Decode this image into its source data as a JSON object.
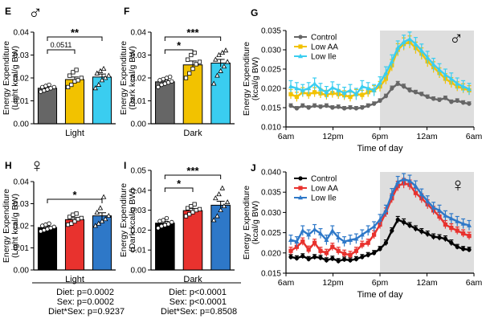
{
  "colors": {
    "control_male": "#666666",
    "low_aa_male": "#F2C200",
    "low_ile_male": "#3ACDF0",
    "control_female": "#000000",
    "low_aa_female": "#E8322E",
    "low_ile_female": "#2E78C8",
    "dark_shade": "#DEDEDE"
  },
  "stats": {
    "light": {
      "diet": "Diet: p=0.0002",
      "sex": "Sex: p=0.0002",
      "interaction": "Diet*Sex: p=0.9237"
    },
    "dark": {
      "diet": "Diet: p<0.0001",
      "sex": "Sex: p<0.0001",
      "interaction": "Diet*Sex: p=0.8508"
    }
  },
  "chart_data": [
    {
      "panel": "E",
      "type": "bar",
      "symbol": "♂",
      "categories": [
        "Control",
        "Low AA",
        "Low Ile"
      ],
      "xlabel": "Light",
      "ylabel": "Energy Expenditure (Light kcal/g BW)",
      "ylim": [
        0,
        0.04
      ],
      "yticks": [
        "0.00",
        "0.01",
        "0.02",
        "0.03",
        "0.04"
      ],
      "values": [
        0.0155,
        0.0193,
        0.0204
      ],
      "errors": [
        0.0006,
        0.0011,
        0.0013
      ],
      "points": [
        [
          0.014,
          0.0145,
          0.015,
          0.0155,
          0.016,
          0.016,
          0.0165,
          0.017
        ],
        [
          0.016,
          0.017,
          0.0185,
          0.019,
          0.02,
          0.021,
          0.0225,
          0.0235
        ],
        [
          0.0155,
          0.017,
          0.019,
          0.02,
          0.021,
          0.022,
          0.023,
          0.024
        ]
      ],
      "annotations": [
        {
          "from": 0,
          "to": 1,
          "label": "0.0511"
        },
        {
          "from": 0,
          "to": 2,
          "label": "**"
        }
      ]
    },
    {
      "panel": "F",
      "type": "bar",
      "categories": [
        "Control",
        "Low AA",
        "Low Ile"
      ],
      "xlabel": "Dark",
      "ylabel": "Energy Expenditure (Dark kcal/g BW)",
      "ylim": [
        0,
        0.04
      ],
      "yticks": [
        "0.00",
        "0.01",
        "0.02",
        "0.03",
        "0.04"
      ],
      "values": [
        0.0183,
        0.0257,
        0.0265
      ],
      "errors": [
        0.0008,
        0.0017,
        0.0016
      ],
      "points": [
        [
          0.016,
          0.017,
          0.0175,
          0.018,
          0.0185,
          0.019,
          0.0195,
          0.02,
          0.0205
        ],
        [
          0.02,
          0.022,
          0.024,
          0.026,
          0.027,
          0.028,
          0.03,
          0.031
        ],
        [
          0.0175,
          0.021,
          0.023,
          0.025,
          0.027,
          0.028,
          0.03,
          0.031,
          0.032
        ]
      ],
      "annotations": [
        {
          "from": 0,
          "to": 1,
          "label": "*"
        },
        {
          "from": 0,
          "to": 2,
          "label": "***"
        }
      ]
    },
    {
      "panel": "G",
      "type": "line",
      "symbol": "♂",
      "series": [
        {
          "name": "Control",
          "values": [
            0.0155,
            0.0148,
            0.0155,
            0.015,
            0.0155,
            0.0152,
            0.0155,
            0.015,
            0.0152,
            0.0148,
            0.015,
            0.0148,
            0.015,
            0.0155,
            0.016,
            0.0168,
            0.018,
            0.02,
            0.0212,
            0.0205,
            0.0195,
            0.019,
            0.0185,
            0.0178,
            0.0173,
            0.017,
            0.0175,
            0.0165,
            0.0168,
            0.0163,
            0.016
          ],
          "errors": [
            0.0005,
            0.0005,
            0.0005,
            0.0005,
            0.0005,
            0.0005,
            0.0005,
            0.0005,
            0.0005,
            0.0005,
            0.0005,
            0.0005,
            0.0005,
            0.0005,
            0.0005,
            0.0005,
            0.0005,
            0.0006,
            0.0006,
            0.0006,
            0.0006,
            0.0005,
            0.0005,
            0.0005,
            0.0005,
            0.0005,
            0.0005,
            0.0005,
            0.0005,
            0.0005,
            0.0005
          ]
        },
        {
          "name": "Low AA",
          "values": [
            0.0185,
            0.0178,
            0.019,
            0.0185,
            0.019,
            0.0187,
            0.0183,
            0.0188,
            0.0185,
            0.0182,
            0.0178,
            0.0185,
            0.0183,
            0.019,
            0.0195,
            0.0205,
            0.0225,
            0.026,
            0.03,
            0.0315,
            0.032,
            0.0305,
            0.029,
            0.027,
            0.0255,
            0.024,
            0.0225,
            0.0215,
            0.0205,
            0.02,
            0.0195
          ],
          "errors": [
            0.0012,
            0.0012,
            0.0012,
            0.0012,
            0.0012,
            0.0012,
            0.0012,
            0.0012,
            0.0012,
            0.0012,
            0.0012,
            0.0012,
            0.0012,
            0.0012,
            0.0012,
            0.0013,
            0.0014,
            0.0015,
            0.0016,
            0.0016,
            0.0016,
            0.0015,
            0.0015,
            0.0014,
            0.0014,
            0.0013,
            0.0013,
            0.0013,
            0.0012,
            0.0012,
            0.0012
          ]
        },
        {
          "name": "Low Ile",
          "values": [
            0.0205,
            0.02,
            0.0195,
            0.02,
            0.0212,
            0.0198,
            0.019,
            0.0202,
            0.0195,
            0.0188,
            0.0195,
            0.0185,
            0.0205,
            0.02,
            0.0195,
            0.0215,
            0.024,
            0.027,
            0.0305,
            0.032,
            0.0328,
            0.0315,
            0.0298,
            0.028,
            0.0262,
            0.0248,
            0.0235,
            0.0225,
            0.0212,
            0.0205,
            0.0198
          ],
          "errors": [
            0.0015,
            0.0015,
            0.0015,
            0.0015,
            0.0015,
            0.0015,
            0.0015,
            0.0015,
            0.0015,
            0.0015,
            0.0015,
            0.0015,
            0.0015,
            0.0015,
            0.0015,
            0.0015,
            0.0016,
            0.0017,
            0.0018,
            0.0018,
            0.0018,
            0.0017,
            0.0017,
            0.0016,
            0.0016,
            0.0016,
            0.0015,
            0.0015,
            0.0015,
            0.0015,
            0.0015
          ]
        }
      ],
      "ylabel": "Energy Expenditure (kcal/g BW)",
      "xlabel": "Time of day",
      "xticks": [
        "6am",
        "12pm",
        "6pm",
        "12am",
        "6am"
      ],
      "ylim": [
        0.01,
        0.035
      ],
      "yticks": [
        "0.010",
        "0.015",
        "0.020",
        "0.025",
        "0.030",
        "0.035"
      ],
      "shaded_dark_phase": [
        0.5,
        1.0
      ],
      "legend": "top-left"
    },
    {
      "panel": "H",
      "type": "bar",
      "symbol": "♀",
      "categories": [
        "Control",
        "Low AA",
        "Low Ile"
      ],
      "xlabel": "Light",
      "ylabel": "Energy Expenditure (Light kcal/g BW)",
      "ylim": [
        0,
        0.04
      ],
      "yticks": [
        "0.00",
        "0.01",
        "0.02",
        "0.03",
        "0.04"
      ],
      "values": [
        0.0192,
        0.0228,
        0.0245
      ],
      "errors": [
        0.0006,
        0.0009,
        0.0014
      ],
      "points": [
        [
          0.0175,
          0.018,
          0.0185,
          0.019,
          0.0195,
          0.02,
          0.0205,
          0.021
        ],
        [
          0.0205,
          0.021,
          0.022,
          0.023,
          0.0235,
          0.024,
          0.025,
          0.0255
        ],
        [
          0.02,
          0.021,
          0.022,
          0.023,
          0.0245,
          0.026,
          0.028,
          0.033
        ]
      ],
      "annotations": [
        {
          "from": 0,
          "to": 2,
          "label": "*"
        }
      ]
    },
    {
      "panel": "I",
      "type": "bar",
      "categories": [
        "Control",
        "Low AA",
        "Low Ile"
      ],
      "xlabel": "Dark",
      "ylabel": "Energy Expenditure (Dark kcal/g BW)",
      "ylim": [
        0,
        0.05
      ],
      "yticks": [
        "0.00",
        "0.01",
        "0.02",
        "0.03",
        "0.04",
        "0.05"
      ],
      "values": [
        0.0235,
        0.0298,
        0.0325
      ],
      "errors": [
        0.0009,
        0.0011,
        0.002
      ],
      "points": [
        [
          0.021,
          0.022,
          0.0225,
          0.023,
          0.024,
          0.0245,
          0.025,
          0.026
        ],
        [
          0.027,
          0.028,
          0.029,
          0.03,
          0.0305,
          0.031,
          0.032,
          0.033
        ],
        [
          0.025,
          0.027,
          0.03,
          0.032,
          0.034,
          0.036,
          0.038,
          0.041
        ]
      ],
      "annotations": [
        {
          "from": 0,
          "to": 1,
          "label": "*"
        },
        {
          "from": 0,
          "to": 2,
          "label": "***"
        }
      ]
    },
    {
      "panel": "J",
      "type": "line",
      "symbol": "♀",
      "series": [
        {
          "name": "Control",
          "values": [
            0.019,
            0.0187,
            0.0192,
            0.0185,
            0.019,
            0.0188,
            0.0182,
            0.0186,
            0.018,
            0.0184,
            0.0182,
            0.0185,
            0.019,
            0.0195,
            0.02,
            0.021,
            0.0225,
            0.0255,
            0.0282,
            0.0276,
            0.0268,
            0.026,
            0.0253,
            0.0247,
            0.024,
            0.0238,
            0.0235,
            0.0225,
            0.0215,
            0.021,
            0.0208
          ],
          "errors": [
            0.0006,
            0.0006,
            0.0006,
            0.0006,
            0.0006,
            0.0006,
            0.0006,
            0.0006,
            0.0006,
            0.0006,
            0.0006,
            0.0006,
            0.0006,
            0.0006,
            0.0006,
            0.0006,
            0.0007,
            0.0007,
            0.0008,
            0.0008,
            0.0007,
            0.0007,
            0.0007,
            0.0007,
            0.0007,
            0.0007,
            0.0007,
            0.0007,
            0.0006,
            0.0006,
            0.0006
          ]
        },
        {
          "name": "Low AA",
          "values": [
            0.0205,
            0.0215,
            0.0228,
            0.0208,
            0.0225,
            0.0205,
            0.02,
            0.0215,
            0.0205,
            0.0198,
            0.0195,
            0.0205,
            0.022,
            0.0225,
            0.0245,
            0.027,
            0.03,
            0.0335,
            0.0365,
            0.0372,
            0.0368,
            0.0348,
            0.0335,
            0.032,
            0.0305,
            0.029,
            0.027,
            0.0262,
            0.0255,
            0.0248,
            0.0242
          ],
          "errors": [
            0.0009,
            0.0009,
            0.0009,
            0.0009,
            0.0009,
            0.0009,
            0.0009,
            0.0009,
            0.0009,
            0.0009,
            0.0009,
            0.0009,
            0.0009,
            0.0009,
            0.001,
            0.001,
            0.0011,
            0.0011,
            0.0012,
            0.0012,
            0.0012,
            0.0011,
            0.0011,
            0.0011,
            0.001,
            0.001,
            0.001,
            0.001,
            0.0009,
            0.0009,
            0.0009
          ]
        },
        {
          "name": "Low Ile",
          "values": [
            0.0232,
            0.0228,
            0.0255,
            0.0245,
            0.0258,
            0.0248,
            0.0232,
            0.0255,
            0.0238,
            0.0228,
            0.0232,
            0.0235,
            0.0245,
            0.0255,
            0.0265,
            0.0282,
            0.0305,
            0.0345,
            0.0375,
            0.0382,
            0.0378,
            0.0365,
            0.0345,
            0.0328,
            0.0312,
            0.0305,
            0.0292,
            0.0285,
            0.0278,
            0.0272,
            0.0268
          ],
          "errors": [
            0.0012,
            0.0012,
            0.0012,
            0.0012,
            0.0012,
            0.0012,
            0.0012,
            0.0012,
            0.0012,
            0.0012,
            0.0012,
            0.0012,
            0.0012,
            0.0012,
            0.0012,
            0.0013,
            0.0013,
            0.0014,
            0.0014,
            0.0014,
            0.0014,
            0.0013,
            0.0013,
            0.0013,
            0.0013,
            0.0013,
            0.0012,
            0.0012,
            0.0012,
            0.0012,
            0.0012
          ]
        }
      ],
      "ylabel": "Energy Expenditure (kcal/g BW)",
      "xlabel": "Time of day",
      "xticks": [
        "6am",
        "12pm",
        "6pm",
        "12am",
        "6am"
      ],
      "ylim": [
        0.015,
        0.04
      ],
      "yticks": [
        "0.015",
        "0.020",
        "0.025",
        "0.030",
        "0.035",
        "0.040"
      ],
      "shaded_dark_phase": [
        0.5,
        1.0
      ],
      "legend": "top-left"
    }
  ]
}
